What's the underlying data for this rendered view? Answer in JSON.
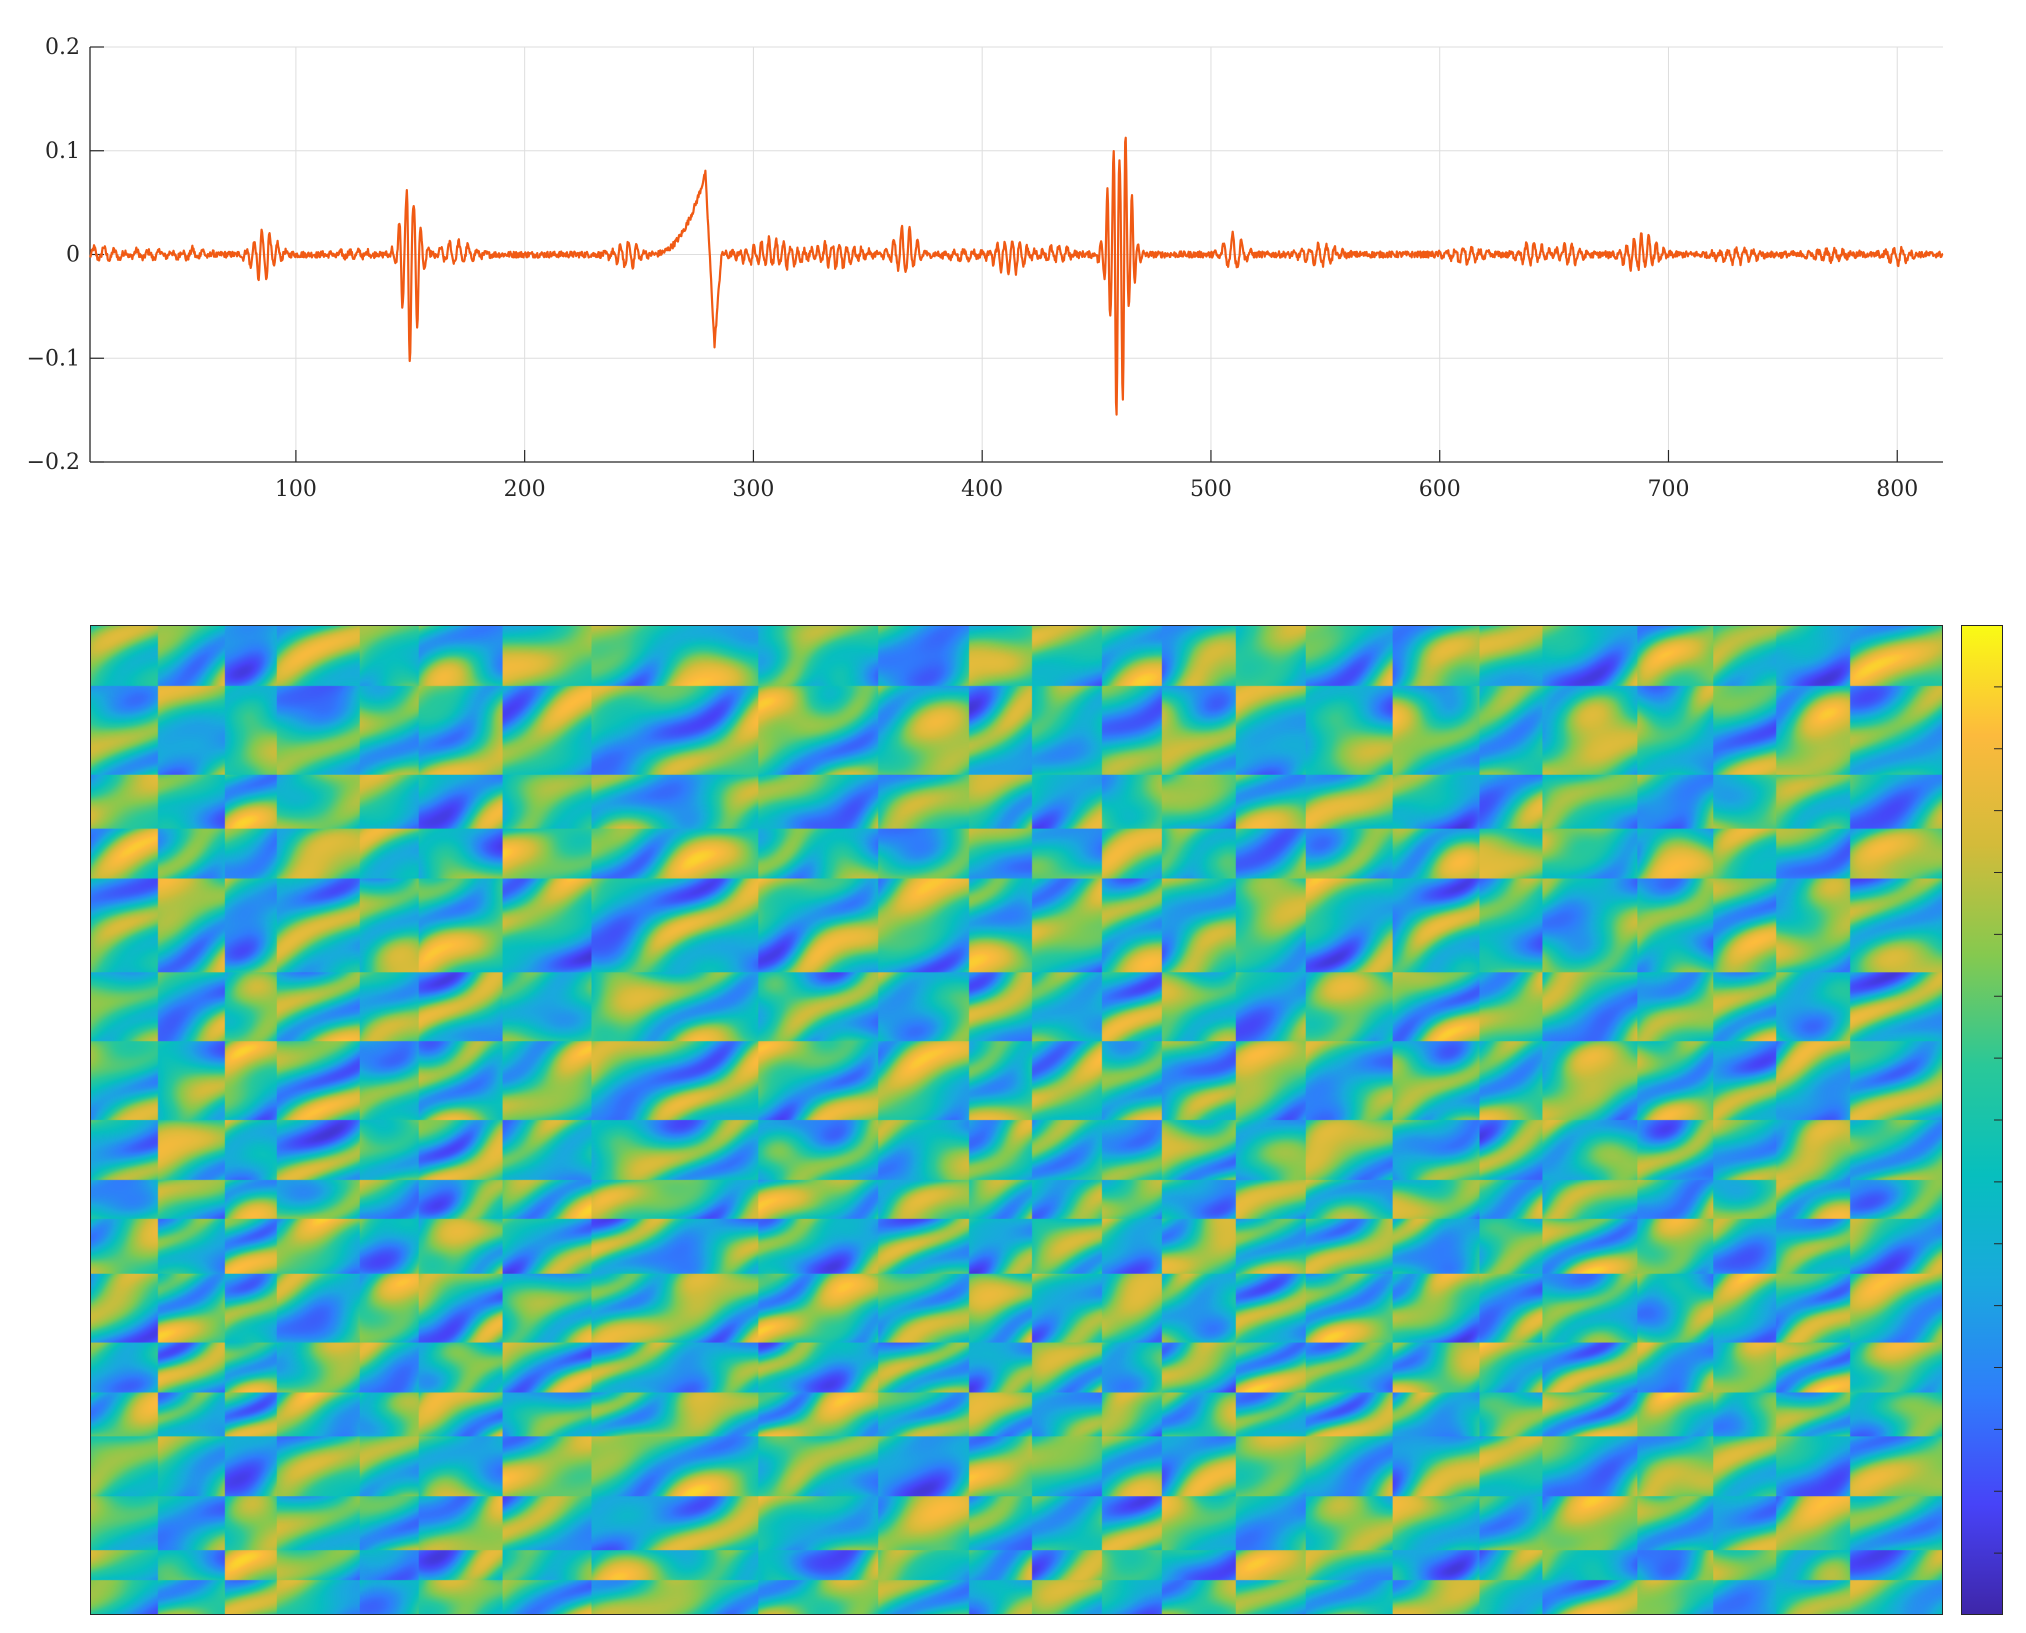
{
  "chart_data": [
    {
      "type": "line",
      "title": "",
      "xlabel": "",
      "ylabel": "",
      "xlim": [
        10,
        820
      ],
      "ylim": [
        -0.2,
        0.2
      ],
      "grid": true,
      "x_ticks": [
        100,
        200,
        300,
        400,
        500,
        600,
        700,
        800
      ],
      "x_tick_labels": [
        "100",
        "200",
        "300",
        "400",
        "500",
        "600",
        "700",
        "800"
      ],
      "y_ticks": [
        -0.2,
        -0.1,
        0,
        0.1,
        0.2
      ],
      "y_tick_labels": [
        "−0.2",
        "−0.1",
        "0",
        "0.1",
        "0.2"
      ],
      "series": [
        {
          "color": "#f05a14",
          "bursts": [
            {
              "center": 15,
              "amplitude": 0.008,
              "width": 8,
              "period": 4.5
            },
            {
              "center": 35,
              "amplitude": 0.005,
              "width": 10,
              "period": 5
            },
            {
              "center": 55,
              "amplitude": 0.006,
              "width": 8,
              "period": 4.5
            },
            {
              "center": 86,
              "amplitude": 0.03,
              "width": 6,
              "period": 3.4
            },
            {
              "center": 125,
              "amplitude": 0.004,
              "width": 10,
              "period": 4
            },
            {
              "center": 150,
              "amplitude": 0.105,
              "width": 4.5,
              "period": 3.2
            },
            {
              "center": 170,
              "amplitude": 0.013,
              "width": 8,
              "period": 4
            },
            {
              "center": 245,
              "amplitude": 0.016,
              "width": 6,
              "period": 3.5
            },
            {
              "center": 310,
              "amplitude": 0.016,
              "width": 14,
              "period": 3.2
            },
            {
              "center": 335,
              "amplitude": 0.014,
              "width": 12,
              "period": 3.2
            },
            {
              "center": 366,
              "amplitude": 0.028,
              "width": 6,
              "period": 3.4
            },
            {
              "center": 390,
              "amplitude": 0.006,
              "width": 8,
              "period": 4
            },
            {
              "center": 412,
              "amplitude": 0.02,
              "width": 8,
              "period": 3.3
            },
            {
              "center": 433,
              "amplitude": 0.01,
              "width": 6,
              "period": 3.5
            },
            {
              "center": 460,
              "amplitude": 0.175,
              "width": 5,
              "period": 2.7
            },
            {
              "center": 510,
              "amplitude": 0.022,
              "width": 5,
              "period": 4
            },
            {
              "center": 548,
              "amplitude": 0.012,
              "width": 8,
              "period": 3.6
            },
            {
              "center": 612,
              "amplitude": 0.01,
              "width": 8,
              "period": 3.6
            },
            {
              "center": 640,
              "amplitude": 0.013,
              "width": 6,
              "period": 3.4
            },
            {
              "center": 657,
              "amplitude": 0.011,
              "width": 6,
              "period": 3.4
            },
            {
              "center": 688,
              "amplitude": 0.02,
              "width": 8,
              "period": 3.2
            },
            {
              "center": 730,
              "amplitude": 0.008,
              "width": 10,
              "period": 3.6
            },
            {
              "center": 770,
              "amplitude": 0.006,
              "width": 10,
              "period": 3.6
            },
            {
              "center": 800,
              "amplitude": 0.01,
              "width": 6,
              "period": 3.6
            }
          ],
          "ramp": {
            "start": 255,
            "peak": 279,
            "end": 283,
            "peak_value": 0.078,
            "min_value": -0.088
          },
          "noise_amplitude": 0.003
        }
      ]
    },
    {
      "type": "heatmap",
      "title": "",
      "colormap": [
        "#3e26a8",
        "#4743f8",
        "#2f7dfb",
        "#1aa8de",
        "#07bfbe",
        "#2ac898",
        "#85c94f",
        "#d3bb3a",
        "#fcba3d",
        "#f9fb14"
      ],
      "colorbar": true,
      "colorbar_ticks": 15,
      "band_columns": [
        0,
        0.036,
        0.072,
        0.1,
        0.145,
        0.177,
        0.222,
        0.27,
        0.36,
        0.425,
        0.474,
        0.508,
        0.546,
        0.578,
        0.618,
        0.656,
        0.703,
        0.75,
        0.784,
        0.835,
        0.876,
        0.91,
        0.95,
        1.0
      ],
      "band_rows": [
        0,
        0.06,
        0.15,
        0.205,
        0.255,
        0.35,
        0.42,
        0.5,
        0.56,
        0.6,
        0.655,
        0.725,
        0.775,
        0.82,
        0.88,
        0.935,
        0.965,
        1.0
      ]
    }
  ]
}
